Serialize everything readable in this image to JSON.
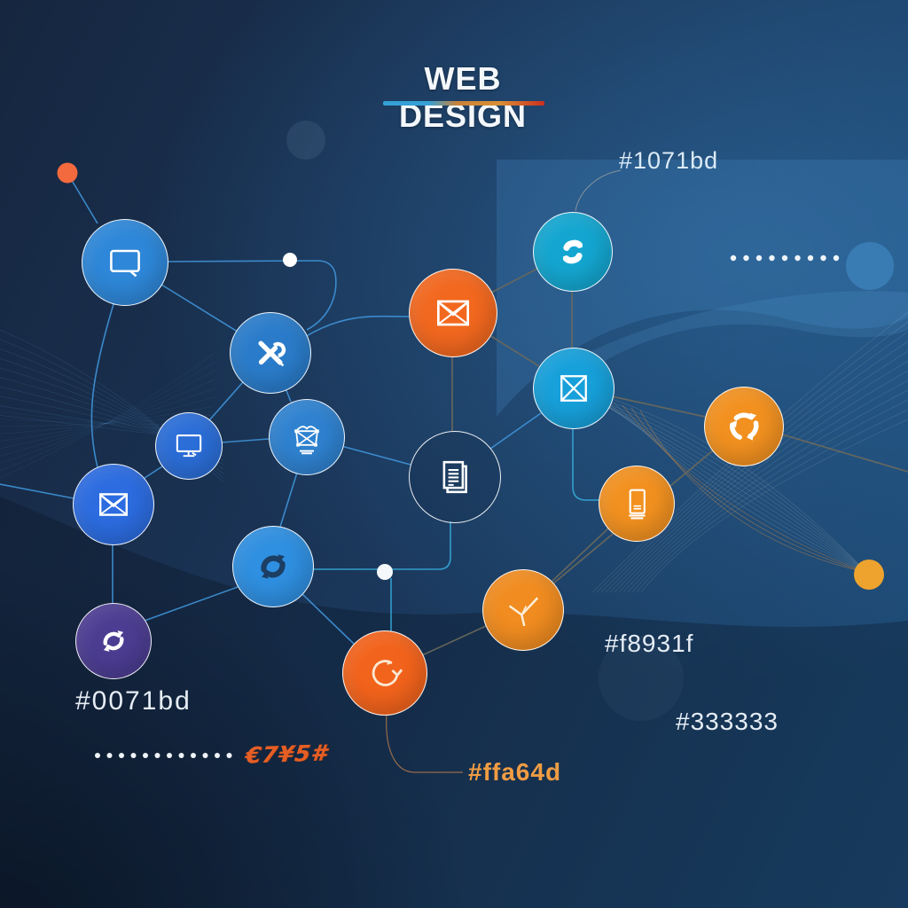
{
  "header": {
    "title": "WEB DESIGN"
  },
  "annotations": {
    "top_right": "#1071bd",
    "bottom_left": "#0071bd",
    "mid_right": "#f8931f",
    "lower_right": "#333333",
    "bottom_center": "#ffa64d",
    "scribble": "€7¥5#"
  },
  "palette": {
    "node_blue": "#2e87d8",
    "node_royal_blue": "#2c6ce0",
    "node_cyan": "#14a6d0",
    "node_orange": "#f29120",
    "node_red_orange": "#f2681f",
    "node_purple": "#4c3d92",
    "background_light": "#1e4d79",
    "background_dark": "#16263f",
    "title_underline": [
      "#35a1d6",
      "#d98f35",
      "#cc2f1f"
    ]
  },
  "nodes": [
    {
      "icon": "chat-icon",
      "color": "#2e87d8"
    },
    {
      "icon": "tools-icon",
      "color": "#2a7cca"
    },
    {
      "icon": "monitor-icon",
      "color": "#2b6ed8"
    },
    {
      "icon": "mail-icon",
      "color": "#2c6ce0"
    },
    {
      "icon": "diagram-icon",
      "color": "#2f82d0"
    },
    {
      "icon": "refresh-icon",
      "color": "#2f8fe0"
    },
    {
      "icon": "recycle-icon",
      "color": "#4c3d92"
    },
    {
      "icon": "documents-icon",
      "color": "transparent"
    },
    {
      "icon": "mail-icon",
      "color": "#f2681f"
    },
    {
      "icon": "sync-icon",
      "color": "#14a6d0"
    },
    {
      "icon": "package-icon",
      "color": "#17a0da"
    },
    {
      "icon": "recycle-icon",
      "color": "#f29120"
    },
    {
      "icon": "mobile-document-icon",
      "color": "#f29120"
    },
    {
      "icon": "send-icon",
      "color": "#f08c20"
    },
    {
      "icon": "loop-icon",
      "color": "#f2631c"
    }
  ]
}
